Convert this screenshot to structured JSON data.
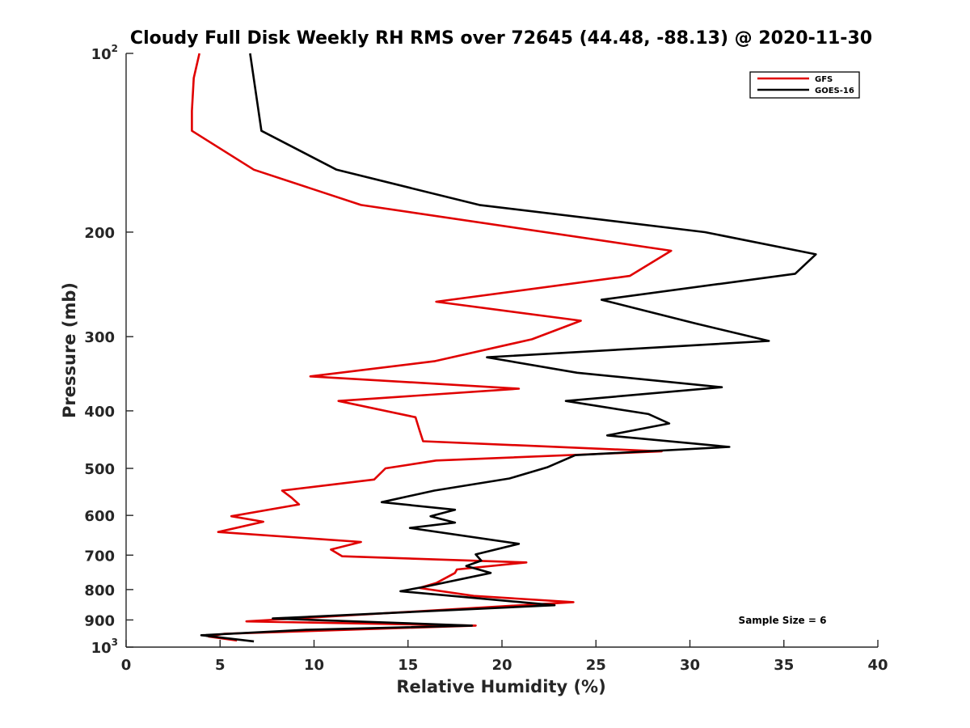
{
  "chart_data": {
    "type": "line",
    "title": "Cloudy Full Disk Weekly RH RMS over 72645 (44.48, -88.13) @ 2020-11-30",
    "xlabel": "Relative Humidity (%)",
    "ylabel": "Pressure (mb)",
    "xlim": [
      0,
      40
    ],
    "ylim": [
      100,
      1000
    ],
    "y_scale": "log",
    "y_reversed": true,
    "x_ticks": [
      "0",
      "5",
      "10",
      "15",
      "20",
      "25",
      "30",
      "35",
      "40"
    ],
    "y_ticks": [
      {
        "value": 100,
        "base": "10",
        "exp": "2"
      },
      {
        "value": 200,
        "label": "200"
      },
      {
        "value": 300,
        "label": "300"
      },
      {
        "value": 400,
        "label": "400"
      },
      {
        "value": 500,
        "label": "500"
      },
      {
        "value": 600,
        "label": "600"
      },
      {
        "value": 700,
        "label": "700"
      },
      {
        "value": 800,
        "label": "800"
      },
      {
        "value": 900,
        "label": "900"
      },
      {
        "value": 1000,
        "base": "10",
        "exp": "3"
      }
    ],
    "grid": false,
    "legend_position": "top-right",
    "annotation": "Sample Size = 6",
    "series": [
      {
        "name": "GFS",
        "color": "#e00000",
        "points": [
          [
            3.9,
            100
          ],
          [
            3.6,
            110
          ],
          [
            3.5,
            125
          ],
          [
            3.5,
            135
          ],
          [
            6.8,
            157
          ],
          [
            12.5,
            180
          ],
          [
            29.0,
            215
          ],
          [
            26.8,
            237
          ],
          [
            16.5,
            262
          ],
          [
            24.2,
            282
          ],
          [
            21.6,
            303
          ],
          [
            16.4,
            330
          ],
          [
            9.8,
            350
          ],
          [
            20.9,
            367
          ],
          [
            11.3,
            385
          ],
          [
            15.4,
            410
          ],
          [
            15.6,
            430
          ],
          [
            15.8,
            450
          ],
          [
            28.5,
            468
          ],
          [
            16.5,
            485
          ],
          [
            13.8,
            500
          ],
          [
            13.2,
            522
          ],
          [
            8.3,
            545
          ],
          [
            8.8,
            560
          ],
          [
            9.2,
            575
          ],
          [
            5.6,
            602
          ],
          [
            7.3,
            615
          ],
          [
            4.9,
            640
          ],
          [
            12.5,
            665
          ],
          [
            10.9,
            685
          ],
          [
            11.5,
            703
          ],
          [
            21.3,
            720
          ],
          [
            17.6,
            740
          ],
          [
            17.5,
            750
          ],
          [
            16.5,
            780
          ],
          [
            15.6,
            795
          ],
          [
            18.5,
            820
          ],
          [
            23.8,
            840
          ],
          [
            6.4,
            905
          ],
          [
            18.6,
            920
          ],
          [
            5.2,
            950
          ],
          [
            4.4,
            960
          ],
          [
            5.9,
            975
          ]
        ]
      },
      {
        "name": "GOES-16",
        "color": "#000000",
        "points": [
          [
            6.6,
            100
          ],
          [
            7.2,
            135
          ],
          [
            11.2,
            157
          ],
          [
            18.8,
            180
          ],
          [
            30.8,
            200
          ],
          [
            36.7,
            218
          ],
          [
            35.6,
            235
          ],
          [
            25.3,
            260
          ],
          [
            30.3,
            285
          ],
          [
            34.2,
            305
          ],
          [
            19.2,
            325
          ],
          [
            24.0,
            345
          ],
          [
            31.7,
            365
          ],
          [
            23.4,
            385
          ],
          [
            27.8,
            405
          ],
          [
            28.9,
            420
          ],
          [
            25.6,
            440
          ],
          [
            32.1,
            460
          ],
          [
            23.9,
            475
          ],
          [
            22.4,
            498
          ],
          [
            20.4,
            520
          ],
          [
            16.4,
            545
          ],
          [
            13.6,
            570
          ],
          [
            17.5,
            587
          ],
          [
            16.2,
            602
          ],
          [
            17.5,
            617
          ],
          [
            15.1,
            630
          ],
          [
            20.9,
            670
          ],
          [
            18.6,
            698
          ],
          [
            18.9,
            715
          ],
          [
            18.1,
            730
          ],
          [
            19.4,
            750
          ],
          [
            16.0,
            790
          ],
          [
            14.6,
            805
          ],
          [
            22.8,
            850
          ],
          [
            7.8,
            895
          ],
          [
            18.4,
            920
          ],
          [
            9.6,
            935
          ],
          [
            4.0,
            955
          ],
          [
            6.8,
            978
          ]
        ]
      }
    ]
  }
}
